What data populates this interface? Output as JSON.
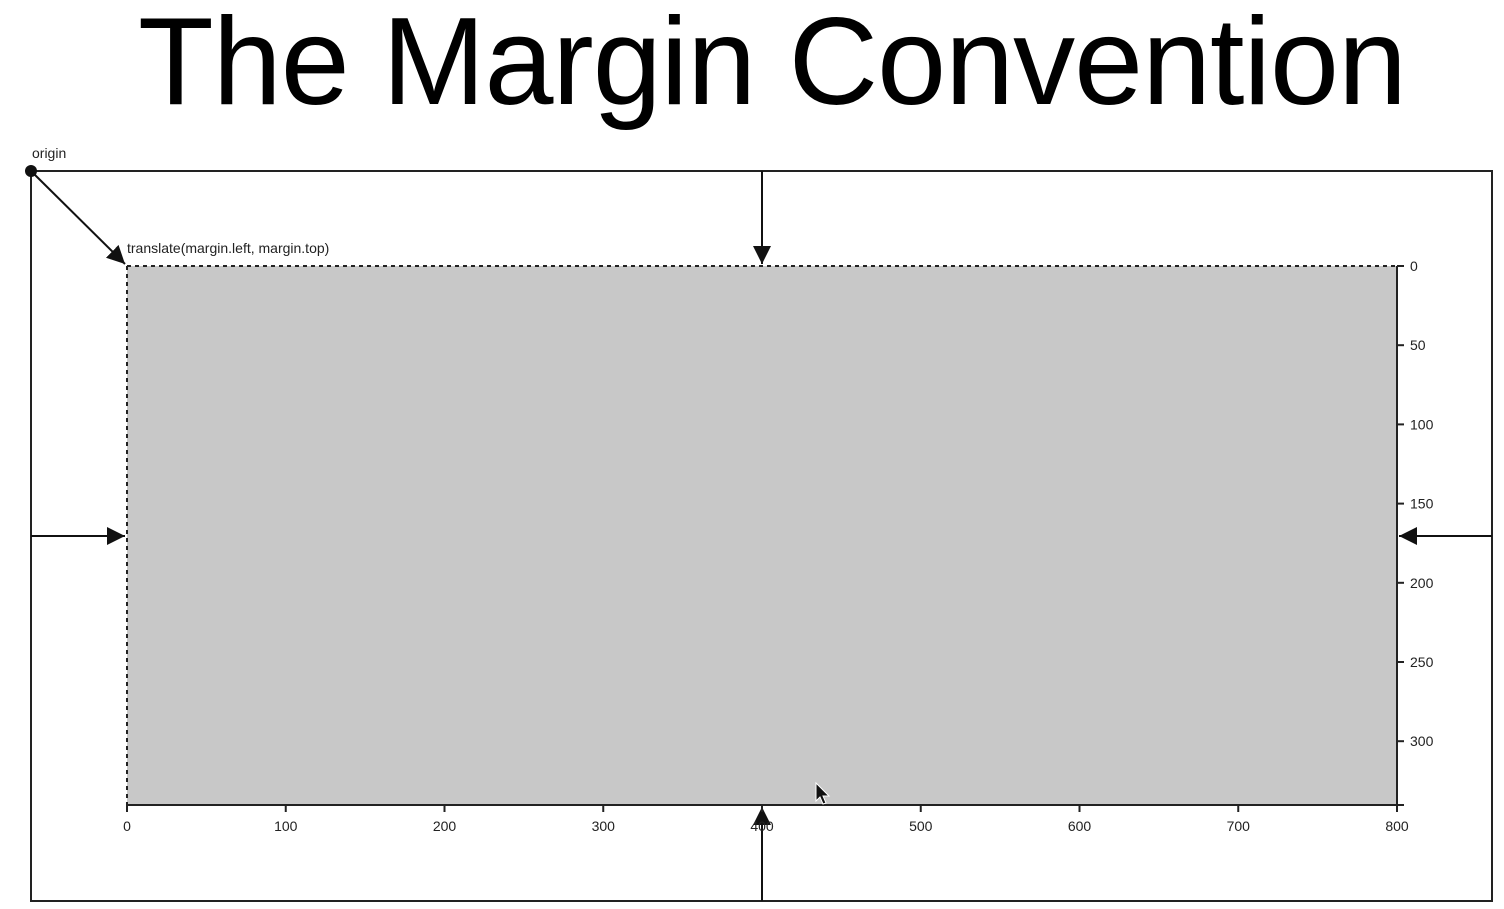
{
  "title": "The Margin Convention",
  "labels": {
    "origin": "origin",
    "translate": "translate(margin.left, margin.top)"
  },
  "x_axis": {
    "ticks": [
      "0",
      "100",
      "200",
      "300",
      "400",
      "500",
      "600",
      "700",
      "800"
    ]
  },
  "y_axis": {
    "ticks": [
      "0",
      "50",
      "100",
      "150",
      "200",
      "250",
      "300"
    ]
  },
  "colors": {
    "plot_fill": "#c8c8c8",
    "stroke": "#222222"
  }
}
